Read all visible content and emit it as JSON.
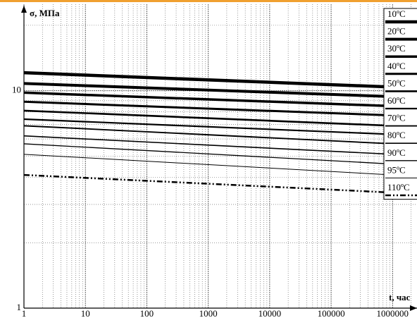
{
  "chart_data": {
    "type": "line",
    "xlabel": "t, час",
    "ylabel": "σ, МПа",
    "log_x": true,
    "log_y": true,
    "grid": true,
    "minor_grid": true,
    "xlim": [
      1,
      2500000
    ],
    "ylim": [
      1,
      25
    ],
    "xticks": [
      1,
      10,
      100,
      1000,
      10000,
      100000,
      1000000
    ],
    "yticks": [
      1,
      10
    ],
    "legend": "right",
    "x": [
      1,
      1000000
    ],
    "series": [
      {
        "name": "10ºC",
        "color": "#000000",
        "width": 4.5,
        "values": [
          12.1,
          10.4
        ]
      },
      {
        "name": "20ºC",
        "color": "#000000",
        "width": 4,
        "values": [
          10.8,
          9.4
        ]
      },
      {
        "name": "30ºC",
        "color": "#000000",
        "width": 3.5,
        "values": [
          9.8,
          8.5
        ]
      },
      {
        "name": "40ºC",
        "color": "#000000",
        "width": 3,
        "values": [
          8.9,
          7.7
        ]
      },
      {
        "name": "50ºC",
        "color": "#000000",
        "width": 2.6,
        "values": [
          8.1,
          6.9
        ]
      },
      {
        "name": "60ºC",
        "color": "#000000",
        "width": 2.2,
        "values": [
          7.4,
          6.3
        ]
      },
      {
        "name": "70ºC",
        "color": "#000000",
        "width": 1.9,
        "values": [
          6.9,
          5.7
        ]
      },
      {
        "name": "80ºC",
        "color": "#000000",
        "width": 1.6,
        "values": [
          6.2,
          5.1
        ]
      },
      {
        "name": "90ºC",
        "color": "#000000",
        "width": 1.3,
        "values": [
          5.7,
          4.6
        ]
      },
      {
        "name": "95ºC",
        "color": "#000000",
        "width": 1,
        "values": [
          5.1,
          4.1
        ]
      },
      {
        "name": "110ºC",
        "color": "#000000",
        "width": 2.5,
        "dash": "dashdot",
        "values": [
          4.1,
          3.4
        ]
      }
    ]
  }
}
